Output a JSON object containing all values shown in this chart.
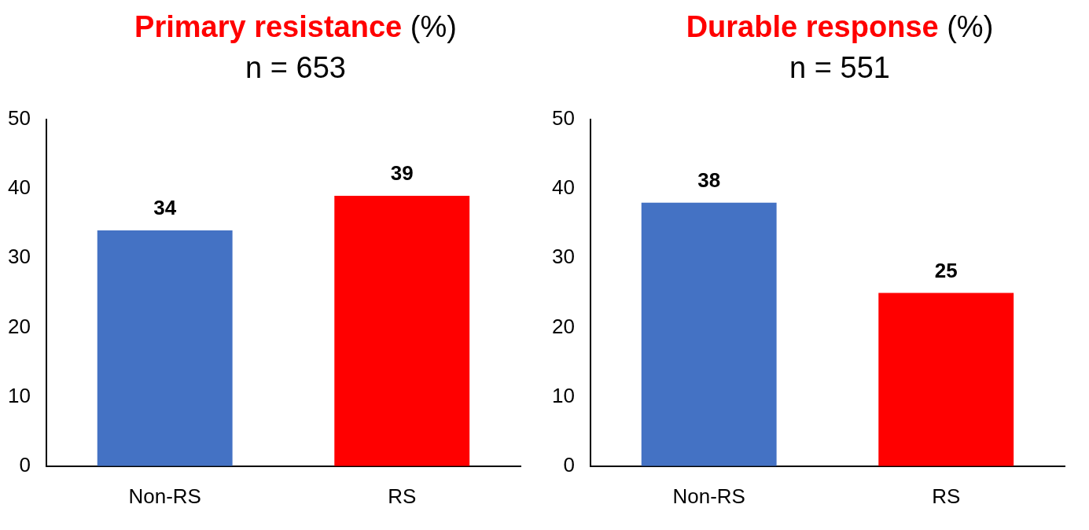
{
  "chart_data": [
    {
      "type": "bar",
      "title": "Primary resistance",
      "ylabel": "(%)",
      "subtitle": "n = 653",
      "categories": [
        "Non-RS",
        "RS"
      ],
      "values": [
        34,
        39
      ],
      "colors": [
        "#4472c4",
        "#ff0000"
      ],
      "ylim": [
        0,
        50
      ],
      "yticks": [
        0,
        10,
        20,
        30,
        40,
        50
      ],
      "data_labels": true,
      "grid": false
    },
    {
      "type": "bar",
      "title": "Durable response",
      "ylabel": "(%)",
      "subtitle": "n = 551",
      "categories": [
        "Non-RS",
        "RS"
      ],
      "values": [
        38,
        25
      ],
      "colors": [
        "#4472c4",
        "#ff0000"
      ],
      "ylim": [
        0,
        50
      ],
      "yticks": [
        0,
        10,
        20,
        30,
        40,
        50
      ],
      "data_labels": true,
      "grid": false
    }
  ]
}
